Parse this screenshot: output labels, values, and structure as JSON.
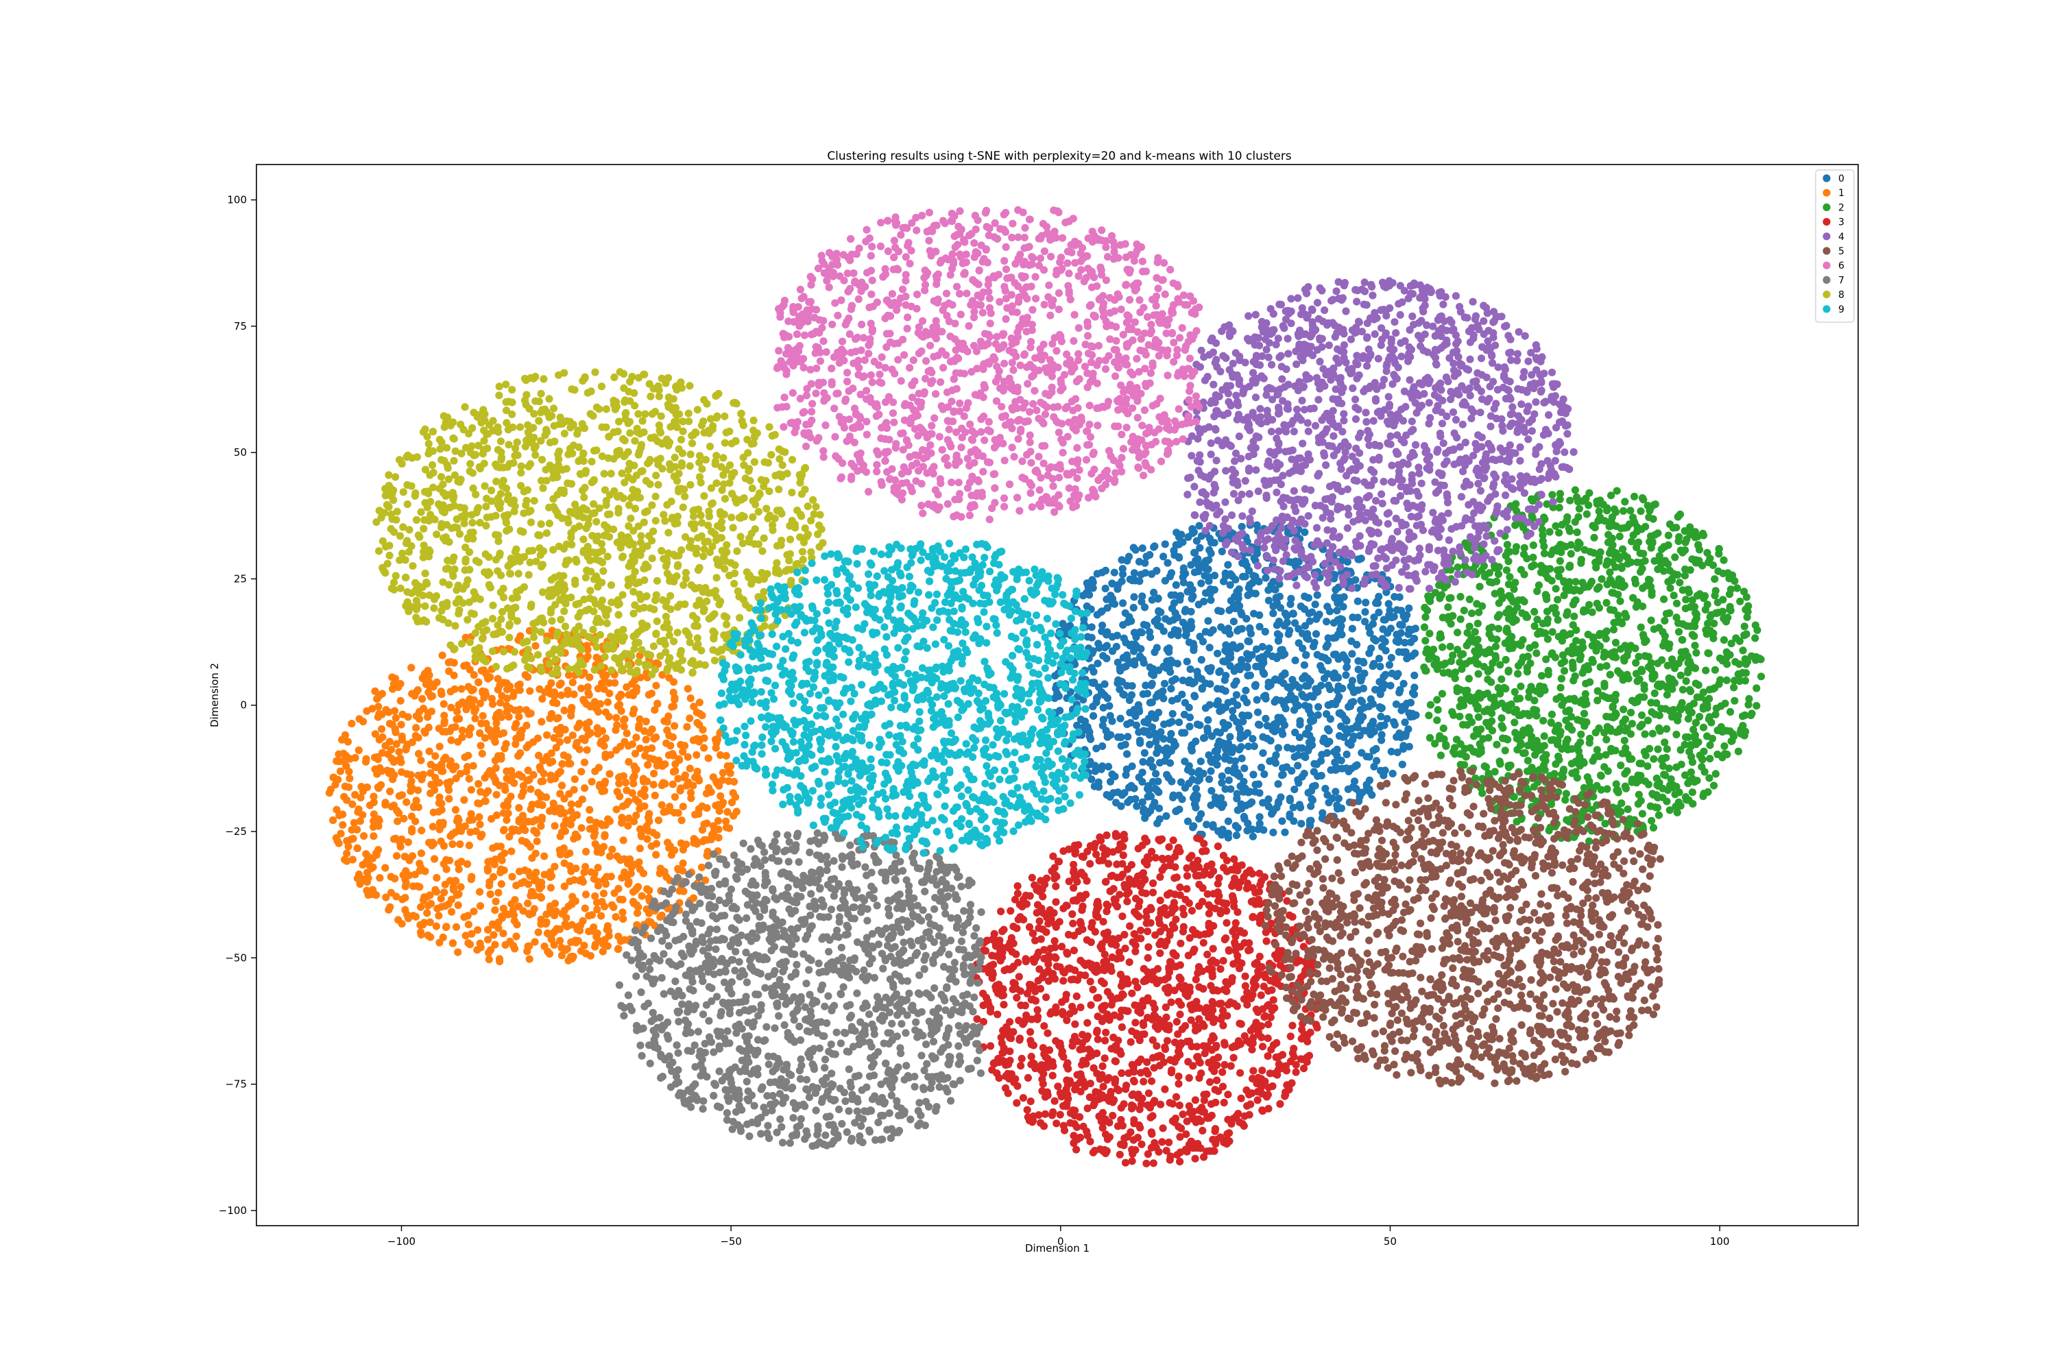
{
  "chart_data": {
    "type": "scatter",
    "title": "Clustering results using t-SNE with perplexity=20 and k-means with 10 clusters",
    "xlabel": "Dimension 1",
    "ylabel": "Dimension 2",
    "xlim": [
      -122,
      121
    ],
    "ylim": [
      -103,
      107
    ],
    "xticks": [
      -100,
      -50,
      0,
      50,
      100
    ],
    "yticks": [
      -100,
      -75,
      -50,
      -25,
      0,
      25,
      50,
      75,
      100
    ],
    "xtick_labels": [
      "−100",
      "−50",
      "0",
      "50",
      "100"
    ],
    "ytick_labels": [
      "−100",
      "−75",
      "−50",
      "−25",
      "0",
      "25",
      "50",
      "75",
      "100"
    ],
    "grid": false,
    "legend_position": "top-right",
    "series": [
      {
        "name": "0",
        "color": "#1f77b4",
        "center": [
          27,
          5
        ],
        "spread": [
          19,
          17
        ],
        "extent_x": [
          -1,
          54
        ],
        "extent_y": [
          -28,
          38
        ]
      },
      {
        "name": "1",
        "color": "#ff7f0e",
        "center": [
          -80,
          -18
        ],
        "spread": [
          20,
          18
        ],
        "extent_x": [
          -111,
          -49
        ],
        "extent_y": [
          -58,
          16
        ]
      },
      {
        "name": "2",
        "color": "#2ca02c",
        "center": [
          80,
          8
        ],
        "spread": [
          17,
          19
        ],
        "extent_x": [
          55,
          111
        ],
        "extent_y": [
          -29,
          45
        ]
      },
      {
        "name": "3",
        "color": "#d62728",
        "center": [
          13,
          -58
        ],
        "spread": [
          17,
          18
        ],
        "extent_x": [
          -15,
          40
        ],
        "extent_y": [
          -93,
          -24
        ]
      },
      {
        "name": "4",
        "color": "#9467bd",
        "center": [
          47,
          53
        ],
        "spread": [
          20,
          17
        ],
        "extent_x": [
          19,
          85
        ],
        "extent_y": [
          23,
          89
        ]
      },
      {
        "name": "5",
        "color": "#8c564b",
        "center": [
          63,
          -44
        ],
        "spread": [
          21,
          17
        ],
        "extent_x": [
          31,
          91
        ],
        "extent_y": [
          -78,
          -12
        ]
      },
      {
        "name": "6",
        "color": "#e377c2",
        "center": [
          -11,
          68
        ],
        "spread": [
          22,
          17
        ],
        "extent_x": [
          -43,
          21
        ],
        "extent_y": [
          30,
          98
        ]
      },
      {
        "name": "7",
        "color": "#7f7f7f",
        "center": [
          -36,
          -56
        ],
        "spread": [
          20,
          17
        ],
        "extent_x": [
          -72,
          -12
        ],
        "extent_y": [
          -89,
          -22
        ]
      },
      {
        "name": "8",
        "color": "#bcbd22",
        "center": [
          -70,
          35
        ],
        "spread": [
          22,
          17
        ],
        "extent_x": [
          -107,
          -30
        ],
        "extent_y": [
          6,
          71
        ]
      },
      {
        "name": "9",
        "color": "#17becf",
        "center": [
          -21,
          2
        ],
        "spread": [
          20,
          17
        ],
        "extent_x": [
          -54,
          4
        ],
        "extent_y": [
          -31,
          32
        ]
      }
    ]
  }
}
